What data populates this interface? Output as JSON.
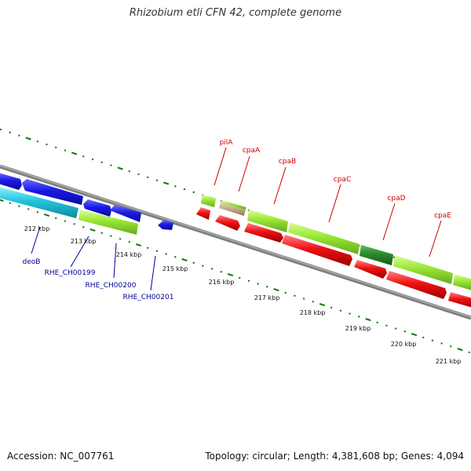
{
  "title": "Rhizobium etli CFN 42, complete genome",
  "footer": {
    "accession": "Accession: NC_007761",
    "stats": "Topology: circular; Length: 4,381,608 bp; Genes: 4,094"
  },
  "ruler_labels": [
    "212 kbp",
    "213 kbp",
    "214 kbp",
    "215 kbp",
    "216 kbp",
    "217 kbp",
    "218 kbp",
    "219 kbp",
    "220 kbp",
    "221 kbp"
  ],
  "forward_gene_labels": [
    "pilA",
    "cpaA",
    "cpaB",
    "cpaC",
    "cpaD",
    "cpaE"
  ],
  "reverse_gene_labels": [
    "deoB",
    "RHE_CH00199",
    "RHE_CH00200",
    "RHE_CH00201"
  ],
  "colors": {
    "backbone": "#808080",
    "dots": "#117711",
    "blue_gene": "#1a1ae6",
    "cyan_gene": "#22c4dc",
    "lime_gene": "#99e633",
    "tan_gene": "#c4b088",
    "dark_green_gene": "#2a8a2a",
    "red_gene": "#ee1111",
    "red_label": "#cc0000",
    "blue_label": "#000099"
  }
}
